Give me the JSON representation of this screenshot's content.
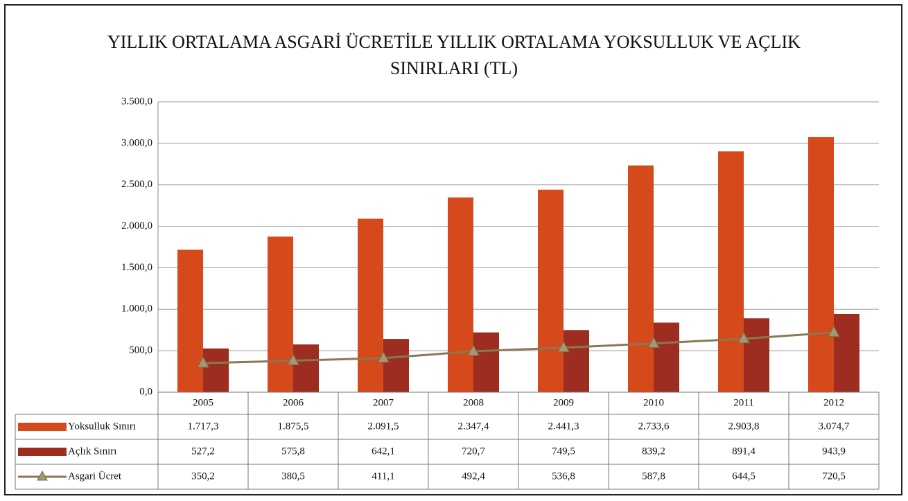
{
  "chart_data": {
    "type": "bar",
    "title": "YILLIK ORTALAMA ASGARİ ÜCRETİLE YILLIK ORTALAMA YOKSULLUK VE AÇLIK SINIRLARI (TL)",
    "categories": [
      "2005",
      "2006",
      "2007",
      "2008",
      "2009",
      "2010",
      "2011",
      "2012"
    ],
    "series": [
      {
        "name": "Yoksulluk Sınırı",
        "type": "bar",
        "color": "#d5491a",
        "values": [
          1717.3,
          1875.5,
          2091.5,
          2347.4,
          2441.3,
          2733.6,
          2903.8,
          3074.7
        ],
        "value_labels": [
          "1.717,3",
          "1.875,5",
          "2.091,5",
          "2.347,4",
          "2.441,3",
          "2.733,6",
          "2.903,8",
          "3.074,7"
        ]
      },
      {
        "name": "Açlık Sınırı",
        "type": "bar",
        "color": "#9c2d20",
        "values": [
          527.2,
          575.8,
          642.1,
          720.7,
          749.5,
          839.2,
          891.4,
          943.9
        ],
        "value_labels": [
          "527,2",
          "575,8",
          "642,1",
          "720,7",
          "749,5",
          "839,2",
          "891,4",
          "943,9"
        ]
      },
      {
        "name": "Asgari Ücret",
        "type": "line",
        "color": "#8a7852",
        "values": [
          350.2,
          380.5,
          411.1,
          492.4,
          536.8,
          587.8,
          644.5,
          720.5
        ],
        "value_labels": [
          "350,2",
          "380,5",
          "411,1",
          "492,4",
          "536,8",
          "587,8",
          "644,5",
          "720,5"
        ]
      }
    ],
    "ylim": [
      0,
      3500
    ],
    "yticks": [
      {
        "value": 0,
        "label": "0,0"
      },
      {
        "value": 500,
        "label": "500,0"
      },
      {
        "value": 1000,
        "label": "1.000,0"
      },
      {
        "value": 1500,
        "label": "1.500,0"
      },
      {
        "value": 2000,
        "label": "2.000,0"
      },
      {
        "value": 2500,
        "label": "2.500,0"
      },
      {
        "value": 3000,
        "label": "3.000,0"
      },
      {
        "value": 3500,
        "label": "3.500,0"
      }
    ],
    "grid": true
  }
}
